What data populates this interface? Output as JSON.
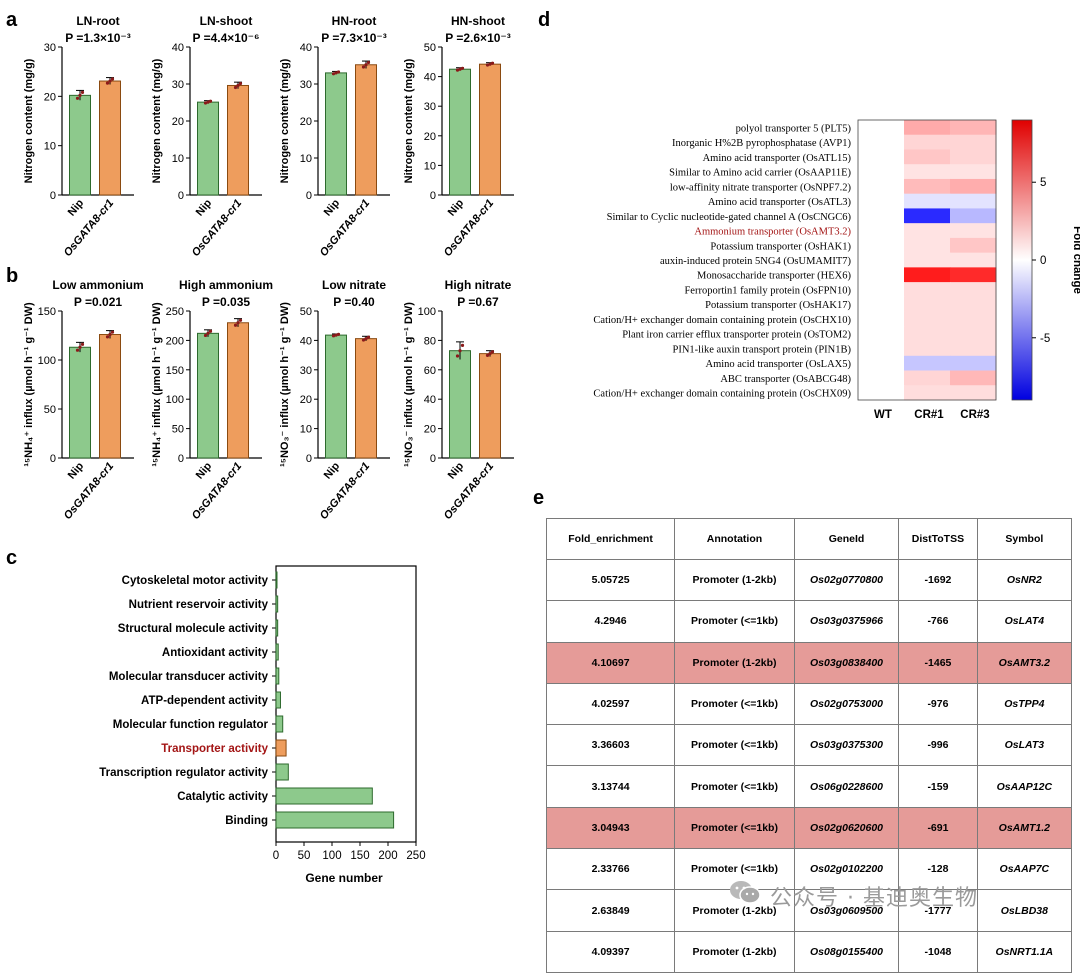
{
  "panels": {
    "a": "a",
    "b": "b",
    "c": "c",
    "d": "d",
    "e": "e"
  },
  "colors": {
    "green": "#8dc98c",
    "green_stroke": "#2d6a2d",
    "orange": "#ee9d5d",
    "orange_stroke": "#8a4a10",
    "dot": "#8b1a1a",
    "highlight_text": "#a31515",
    "table_highlight": "#e59b98"
  },
  "chart_data": [
    {
      "panel": "a",
      "type": "bar",
      "title": "LN-root",
      "pvalue": "P =1.3×10⁻³",
      "categories": [
        "Nip",
        "OsGATA8-cr1"
      ],
      "values": [
        20.2,
        23.1
      ],
      "errors": [
        1.0,
        0.7
      ],
      "ylabel": "Nitrogen content (mg/g)",
      "ylim": [
        0,
        30
      ],
      "yticks": [
        0,
        10,
        20,
        30
      ]
    },
    {
      "panel": "a",
      "type": "bar",
      "title": "LN-shoot",
      "pvalue": "P =4.4×10⁻⁶",
      "categories": [
        "Nip",
        "OsGATA8-cr1"
      ],
      "values": [
        25.1,
        29.6
      ],
      "errors": [
        0.4,
        0.9
      ],
      "ylabel": "Nitrogen content (mg/g)",
      "ylim": [
        0,
        40
      ],
      "yticks": [
        0,
        10,
        20,
        30,
        40
      ]
    },
    {
      "panel": "a",
      "type": "bar",
      "title": "HN-root",
      "pvalue": "P =7.3×10⁻³",
      "categories": [
        "Nip",
        "OsGATA8-cr1"
      ],
      "values": [
        33.0,
        35.2
      ],
      "errors": [
        0.4,
        1.0
      ],
      "ylabel": "Nitrogen content (mg/g)",
      "ylim": [
        0,
        40
      ],
      "yticks": [
        0,
        10,
        20,
        30,
        40
      ]
    },
    {
      "panel": "a",
      "type": "bar",
      "title": "HN-shoot",
      "pvalue": "P =2.6×10⁻³",
      "categories": [
        "Nip",
        "OsGATA8-cr1"
      ],
      "values": [
        42.5,
        44.2
      ],
      "errors": [
        0.5,
        0.5
      ],
      "ylabel": "Nitrogen content (mg/g)",
      "ylim": [
        0,
        50
      ],
      "yticks": [
        0,
        10,
        20,
        30,
        40,
        50
      ]
    },
    {
      "panel": "b",
      "type": "bar",
      "title": "Low ammonium",
      "pvalue": "P =0.021",
      "categories": [
        "Nip",
        "OsGATA8-cr1"
      ],
      "values": [
        113,
        126
      ],
      "errors": [
        5,
        4
      ],
      "ylabel": "¹⁵NH₄⁺ influx (µmol h⁻¹ g⁻¹ DW)",
      "ylim": [
        0,
        150
      ],
      "yticks": [
        0,
        50,
        100,
        150
      ]
    },
    {
      "panel": "b",
      "type": "bar",
      "title": "High ammonium",
      "pvalue": "P =0.035",
      "categories": [
        "Nip",
        "OsGATA8-cr1"
      ],
      "values": [
        212,
        230
      ],
      "errors": [
        6,
        7
      ],
      "ylabel": "¹⁵NH₄⁺ influx (µmol h⁻¹ g⁻¹ DW)",
      "ylim": [
        0,
        250
      ],
      "yticks": [
        0,
        50,
        100,
        150,
        200,
        250
      ]
    },
    {
      "panel": "b",
      "type": "bar",
      "title": "Low nitrate",
      "pvalue": "P =0.40",
      "categories": [
        "Nip",
        "OsGATA8-cr1"
      ],
      "values": [
        41.8,
        40.6
      ],
      "errors": [
        0.4,
        0.8
      ],
      "ylabel": "¹⁵NO₃⁻ influx (µmol h⁻¹ g⁻¹ DW)",
      "ylim": [
        0,
        50
      ],
      "yticks": [
        0,
        10,
        20,
        30,
        40,
        50
      ]
    },
    {
      "panel": "b",
      "type": "bar",
      "title": "High nitrate",
      "pvalue": "P =0.67",
      "categories": [
        "Nip",
        "OsGATA8-cr1"
      ],
      "values": [
        73,
        71
      ],
      "errors": [
        6,
        2
      ],
      "ylabel": "¹⁵NO₃⁻ influx (µmol h⁻¹ g⁻¹ DW)",
      "ylim": [
        0,
        100
      ],
      "yticks": [
        0,
        20,
        40,
        60,
        80,
        100
      ]
    },
    {
      "panel": "c",
      "type": "bar",
      "orientation": "horizontal",
      "categories": [
        "Cytoskeletal motor activity",
        "Nutrient reservoir activity",
        "Structural molecule activity",
        "Antioxidant activity",
        "Molecular transducer activity",
        "ATP-dependent activity",
        "Molecular function regulator",
        "Transporter activity",
        "Transcription regulator activity",
        "Catalytic activity",
        "Binding"
      ],
      "values": [
        1,
        3,
        3,
        4,
        5,
        8,
        12,
        18,
        22,
        172,
        210
      ],
      "highlight": "Transporter activity",
      "xlabel": "Gene number",
      "xlim": [
        0,
        250
      ],
      "xticks": [
        0,
        50,
        100,
        150,
        200,
        250
      ]
    },
    {
      "panel": "d",
      "type": "heatmap",
      "rows": [
        "polyol transporter 5 (PLT5)",
        "Inorganic H%2B pyrophosphatase (AVP1)",
        "Amino acid transporter (OsATL15)",
        "Similar to Amino acid carrier (OsAAP11E)",
        "low-affinity nitrate transporter (OsNPF7.2)",
        "Amino acid transporter (OsATL3)",
        "Similar to Cyclic nucleotide-gated channel A (OsCNGC6)",
        "Ammonium transporter (OsAMT3.2)",
        "Potassium transporter (OsHAK1)",
        "auxin-induced protein 5NG4 (OsUMAMIT7)",
        "Monosaccharide transporter (HEX6)",
        "Ferroportin1 family protein (OsFPN10)",
        "Potassium transporter (OsHAK17)",
        "Cation/H+ exchanger domain containing protein (OsCHX10)",
        "Plant iron carrier efflux transporter protein (OsTOM2)",
        "PIN1-like auxin transport protein (PIN1B)",
        "Amino acid transporter (OsLAX5)",
        "ABC transporter (OsABCG48)",
        "Cation/H+ exchanger domain containing protein (OsCHX09)"
      ],
      "highlight_row": "Ammonium transporter (OsAMT3.2)",
      "columns": [
        "WT",
        "CR#1",
        "CR#3"
      ],
      "values": [
        [
          0,
          3.0,
          2.6
        ],
        [
          0,
          1.5,
          1.5
        ],
        [
          0,
          2.0,
          1.5
        ],
        [
          0,
          1.0,
          1.0
        ],
        [
          0,
          2.4,
          2.9
        ],
        [
          0,
          -1.0,
          -1.0
        ],
        [
          0,
          -7.5,
          -2.5
        ],
        [
          0,
          1.0,
          1.0
        ],
        [
          0,
          1.0,
          2.0
        ],
        [
          0,
          1.0,
          1.0
        ],
        [
          0,
          8.0,
          7.5
        ],
        [
          0,
          1.2,
          1.2
        ],
        [
          0,
          1.2,
          1.2
        ],
        [
          0,
          1.2,
          1.2
        ],
        [
          0,
          1.2,
          1.2
        ],
        [
          0,
          1.2,
          1.2
        ],
        [
          0,
          -2.0,
          -2.0
        ],
        [
          0,
          1.5,
          2.5
        ],
        [
          0,
          1.2,
          1.2
        ]
      ],
      "colorbar": {
        "label": "Fold change",
        "min": -9,
        "max": 9,
        "ticks": [
          -5,
          0,
          5
        ]
      }
    }
  ],
  "table_e": {
    "headers": [
      "Fold_enrichment",
      "Annotation",
      "GeneId",
      "DistToTSS",
      "Symbol"
    ],
    "rows": [
      {
        "fold": "5.05725",
        "annotation": "Promoter (1‑2kb)",
        "gene": "Os02g0770800",
        "dist": "-1692",
        "symbol": "OsNR2",
        "highlight": false
      },
      {
        "fold": "4.2946",
        "annotation": "Promoter (<=1kb)",
        "gene": "Os03g0375966",
        "dist": "-766",
        "symbol": "OsLAT4",
        "highlight": false
      },
      {
        "fold": "4.10697",
        "annotation": "Promoter (1‑2kb)",
        "gene": "Os03g0838400",
        "dist": "-1465",
        "symbol": "OsAMT3.2",
        "highlight": true
      },
      {
        "fold": "4.02597",
        "annotation": "Promoter (<=1kb)",
        "gene": "Os02g0753000",
        "dist": "-976",
        "symbol": "OsTPP4",
        "highlight": false
      },
      {
        "fold": "3.36603",
        "annotation": "Promoter (<=1kb)",
        "gene": "Os03g0375300",
        "dist": "-996",
        "symbol": "OsLAT3",
        "highlight": false
      },
      {
        "fold": "3.13744",
        "annotation": "Promoter (<=1kb)",
        "gene": "Os06g0228600",
        "dist": "-159",
        "symbol": "OsAAP12C",
        "highlight": false
      },
      {
        "fold": "3.04943",
        "annotation": "Promoter (<=1kb)",
        "gene": "Os02g0620600",
        "dist": "-691",
        "symbol": "OsAMT1.2",
        "highlight": true
      },
      {
        "fold": "2.33766",
        "annotation": "Promoter (<=1kb)",
        "gene": "Os02g0102200",
        "dist": "-128",
        "symbol": "OsAAP7C",
        "highlight": false
      },
      {
        "fold": "2.63849",
        "annotation": "Promoter (1‑2kb)",
        "gene": "Os03g0609500",
        "dist": "-1777",
        "symbol": "OsLBD38",
        "highlight": false
      },
      {
        "fold": "4.09397",
        "annotation": "Promoter (1‑2kb)",
        "gene": "Os08g0155400",
        "dist": "-1048",
        "symbol": "OsNRT1.1A",
        "highlight": false
      }
    ]
  },
  "watermark": {
    "text": "公众号 · 基迪奥生物",
    "icon": "wechat-icon"
  }
}
